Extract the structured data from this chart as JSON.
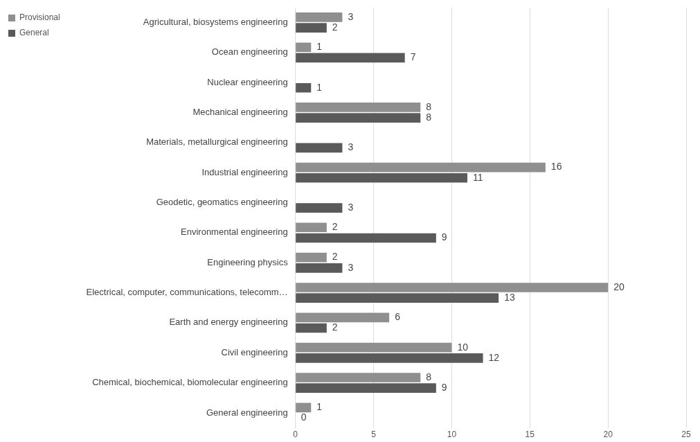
{
  "chart_data": {
    "type": "bar",
    "orientation": "horizontal",
    "categories": [
      "Agricultural, biosystems engineering",
      "Ocean engineering",
      "Nuclear engineering",
      "Mechanical engineering",
      "Materials, metallurgical engineering",
      "Industrial engineering",
      "Geodetic, geomatics engineering",
      "Environmental engineering",
      "Engineering physics",
      "Electrical, computer, communications, telecomm…",
      "Earth and energy engineering",
      "Civil engineering",
      "Chemical, biochemical, biomolecular engineering",
      "General engineering"
    ],
    "series": [
      {
        "name": "Provisional",
        "color": "#8f8f8f",
        "values": [
          3,
          1,
          null,
          8,
          null,
          16,
          null,
          2,
          2,
          20,
          6,
          10,
          8,
          1
        ]
      },
      {
        "name": "General",
        "color": "#5a5a5a",
        "values": [
          2,
          7,
          1,
          8,
          3,
          11,
          3,
          9,
          3,
          13,
          2,
          12,
          9,
          0
        ]
      }
    ],
    "xlim": [
      0,
      25
    ],
    "xticks": [
      0,
      5,
      10,
      15,
      20,
      25
    ],
    "grid": "x",
    "legend": "top left",
    "data_labels": true
  }
}
